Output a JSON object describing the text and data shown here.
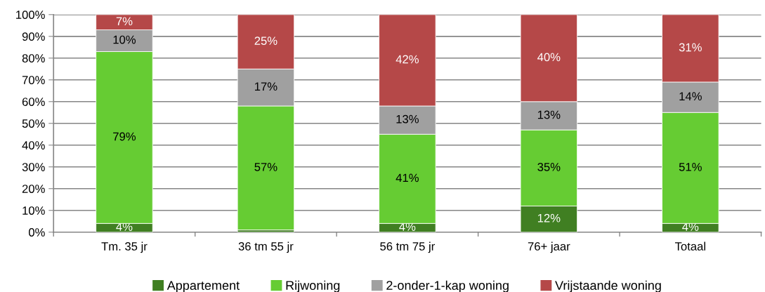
{
  "chart_data": {
    "type": "bar",
    "stacked": true,
    "categories": [
      "Tm. 35 jr",
      "36 tm 55 jr",
      "56 tm 75 jr",
      "76+ jaar",
      "Totaal"
    ],
    "series": [
      {
        "name": "Appartement",
        "color": "#407f22",
        "values": [
          4,
          1,
          4,
          12,
          4
        ],
        "value_labels": [
          "4%",
          null,
          "4%",
          "12%",
          "4%"
        ]
      },
      {
        "name": "Rijwoning",
        "color": "#66cc33",
        "values": [
          79,
          57,
          41,
          35,
          51
        ],
        "value_labels": [
          "79%",
          "57%",
          "41%",
          "35%",
          "51%"
        ]
      },
      {
        "name": "2-onder-1-kap woning",
        "color": "#a0a0a0",
        "values": [
          10,
          17,
          13,
          13,
          14
        ],
        "value_labels": [
          "10%",
          "17%",
          "13%",
          "13%",
          "14%"
        ]
      },
      {
        "name": "Vrijstaande woning",
        "color": "#b54848",
        "values": [
          7,
          25,
          42,
          40,
          31
        ],
        "value_labels": [
          "7%",
          "25%",
          "42%",
          "40%",
          "31%"
        ]
      }
    ],
    "ylim": [
      0,
      100
    ],
    "yticks": [
      {
        "value": 0,
        "label": "0%"
      },
      {
        "value": 10,
        "label": "10%"
      },
      {
        "value": 20,
        "label": "20%"
      },
      {
        "value": 30,
        "label": "30%"
      },
      {
        "value": 40,
        "label": "40%"
      },
      {
        "value": 50,
        "label": "50%"
      },
      {
        "value": 60,
        "label": "60%"
      },
      {
        "value": 70,
        "label": "70%"
      },
      {
        "value": 80,
        "label": "80%"
      },
      {
        "value": 90,
        "label": "90%"
      },
      {
        "value": 100,
        "label": "100%"
      }
    ],
    "grid": "y",
    "legend": "bottom"
  }
}
